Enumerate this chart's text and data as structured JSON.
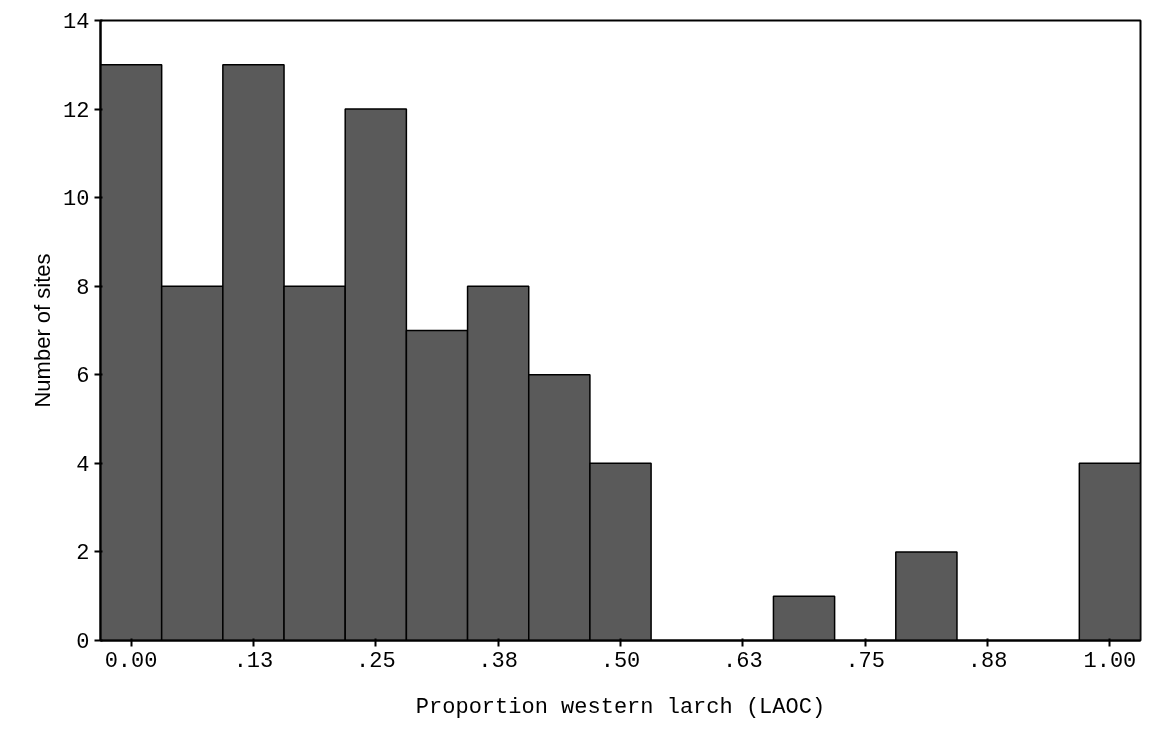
{
  "chart_data": {
    "type": "histogram",
    "xlabel": "Proportion western larch (LAOC)",
    "ylabel": "Number of sites",
    "bins": [
      -0.03125,
      0.03125,
      0.09375,
      0.15625,
      0.21875,
      0.28125,
      0.34375,
      0.40625,
      0.46875,
      0.53125,
      0.59375,
      0.65625,
      0.71875,
      0.78125,
      0.84375,
      0.90625,
      0.96875,
      1.03125
    ],
    "values": [
      13,
      8,
      13,
      8,
      12,
      7,
      8,
      6,
      4,
      0,
      0,
      1,
      0,
      2,
      0,
      0,
      4
    ],
    "color": "#5a5a5a",
    "xlim": [
      -0.03125,
      1.03125
    ],
    "xticks": [
      {
        "value": 0,
        "label": "0.00"
      },
      {
        "value": 0.125,
        "label": ".13"
      },
      {
        "value": 0.25,
        "label": ".25"
      },
      {
        "value": 0.375,
        "label": ".38"
      },
      {
        "value": 0.5,
        "label": ".50"
      },
      {
        "value": 0.625,
        "label": ".63"
      },
      {
        "value": 0.75,
        "label": ".75"
      },
      {
        "value": 0.875,
        "label": ".88"
      },
      {
        "value": 1,
        "label": "1.00"
      }
    ],
    "ylim": [
      0,
      14
    ],
    "yticks": [
      0,
      2,
      4,
      6,
      8,
      10,
      12,
      14
    ],
    "grid": false
  }
}
